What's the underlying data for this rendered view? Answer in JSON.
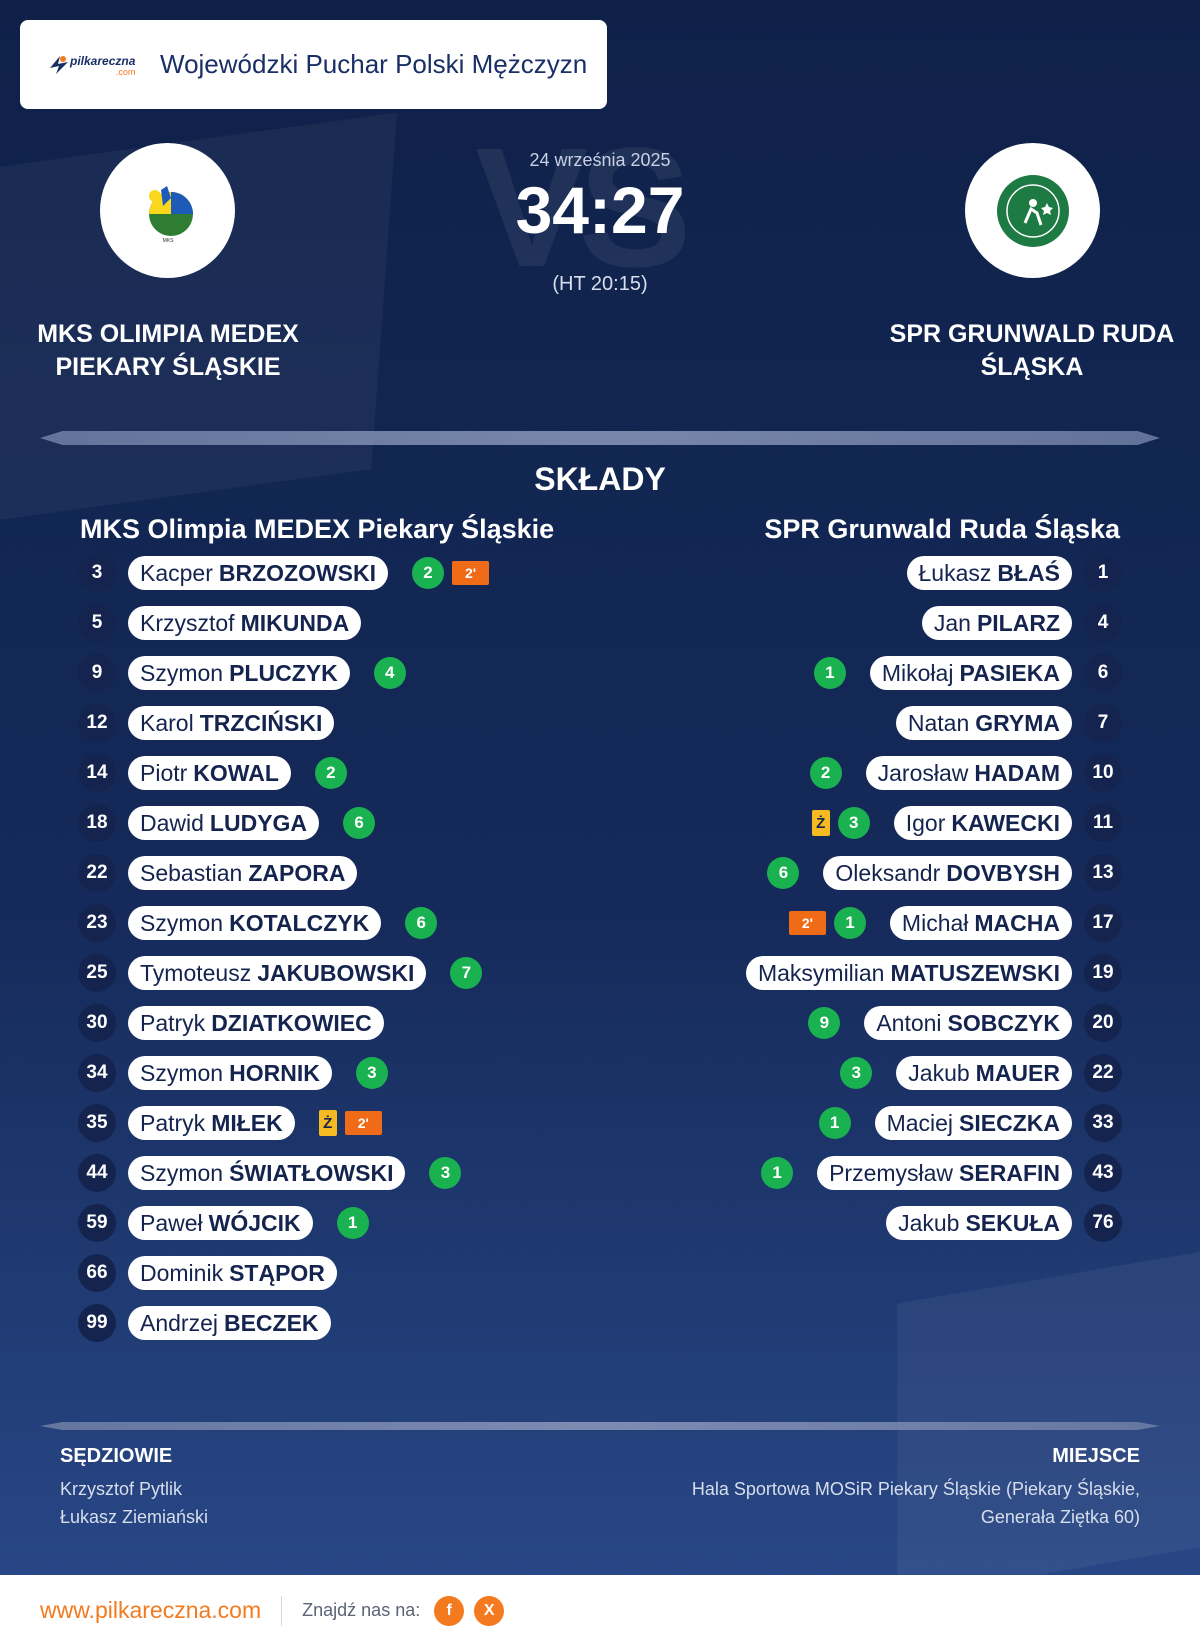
{
  "header": {
    "brand_main": "pilkareczna",
    "brand_sub": ".com",
    "title": "Wojewódzki Puchar Polski Mężczyzn"
  },
  "match": {
    "date": "24 września 2025",
    "score": "34:27",
    "halftime": "(HT 20:15)",
    "home_team": "MKS Olimpia MEDEX Piekary Śląskie",
    "away_team": "SPR Grunwald Ruda Śląska"
  },
  "squads_title": "SKŁADY",
  "home_squad": [
    {
      "number": "3",
      "first": "Kacper",
      "last": "BRZOZOWSKI",
      "goals": "2",
      "yellow": false,
      "suspension": "2'"
    },
    {
      "number": "5",
      "first": "Krzysztof",
      "last": "MIKUNDA",
      "goals": null,
      "yellow": false,
      "suspension": null
    },
    {
      "number": "9",
      "first": "Szymon",
      "last": "PLUCZYK",
      "goals": "4",
      "yellow": false,
      "suspension": null
    },
    {
      "number": "12",
      "first": "Karol",
      "last": "TRZCIŃSKI",
      "goals": null,
      "yellow": false,
      "suspension": null
    },
    {
      "number": "14",
      "first": "Piotr",
      "last": "KOWAL",
      "goals": "2",
      "yellow": false,
      "suspension": null
    },
    {
      "number": "18",
      "first": "Dawid",
      "last": "LUDYGA",
      "goals": "6",
      "yellow": false,
      "suspension": null
    },
    {
      "number": "22",
      "first": "Sebastian",
      "last": "ZAPORA",
      "goals": null,
      "yellow": false,
      "suspension": null
    },
    {
      "number": "23",
      "first": "Szymon",
      "last": "KOTALCZYK",
      "goals": "6",
      "yellow": false,
      "suspension": null
    },
    {
      "number": "25",
      "first": "Tymoteusz",
      "last": "JAKUBOWSKI",
      "goals": "7",
      "yellow": false,
      "suspension": null
    },
    {
      "number": "30",
      "first": "Patryk",
      "last": "DZIATKOWIEC",
      "goals": null,
      "yellow": false,
      "suspension": null
    },
    {
      "number": "34",
      "first": "Szymon",
      "last": "HORNIK",
      "goals": "3",
      "yellow": false,
      "suspension": null
    },
    {
      "number": "35",
      "first": "Patryk",
      "last": "MIŁEK",
      "goals": null,
      "yellow": true,
      "suspension": "2'"
    },
    {
      "number": "44",
      "first": "Szymon",
      "last": "ŚWIATŁOWSKI",
      "goals": "3",
      "yellow": false,
      "suspension": null
    },
    {
      "number": "59",
      "first": "Paweł",
      "last": "WÓJCIK",
      "goals": "1",
      "yellow": false,
      "suspension": null
    },
    {
      "number": "66",
      "first": "Dominik",
      "last": "STĄPOR",
      "goals": null,
      "yellow": false,
      "suspension": null
    },
    {
      "number": "99",
      "first": "Andrzej",
      "last": "BECZEK",
      "goals": null,
      "yellow": false,
      "suspension": null
    }
  ],
  "away_squad": [
    {
      "number": "1",
      "first": "Łukasz",
      "last": "BŁAŚ",
      "goals": null,
      "yellow": false,
      "suspension": null
    },
    {
      "number": "4",
      "first": "Jan",
      "last": "PILARZ",
      "goals": null,
      "yellow": false,
      "suspension": null
    },
    {
      "number": "6",
      "first": "Mikołaj",
      "last": "PASIEKA",
      "goals": "1",
      "yellow": false,
      "suspension": null
    },
    {
      "number": "7",
      "first": "Natan",
      "last": "GRYMA",
      "goals": null,
      "yellow": false,
      "suspension": null
    },
    {
      "number": "10",
      "first": "Jarosław",
      "last": "HADAM",
      "goals": "2",
      "yellow": false,
      "suspension": null
    },
    {
      "number": "11",
      "first": "Igor",
      "last": "KAWECKI",
      "goals": "3",
      "yellow": true,
      "suspension": null
    },
    {
      "number": "13",
      "first": "Oleksandr",
      "last": "DOVBYSH",
      "goals": "6",
      "yellow": false,
      "suspension": null
    },
    {
      "number": "17",
      "first": "Michał",
      "last": "MACHA",
      "goals": "1",
      "yellow": false,
      "suspension": "2'"
    },
    {
      "number": "19",
      "first": "Maksymilian",
      "last": "MATUSZEWSKI",
      "goals": null,
      "yellow": false,
      "suspension": null
    },
    {
      "number": "20",
      "first": "Antoni",
      "last": "SOBCZYK",
      "goals": "9",
      "yellow": false,
      "suspension": null
    },
    {
      "number": "22",
      "first": "Jakub",
      "last": "MAUER",
      "goals": "3",
      "yellow": false,
      "suspension": null
    },
    {
      "number": "33",
      "first": "Maciej",
      "last": "SIECZKA",
      "goals": "1",
      "yellow": false,
      "suspension": null
    },
    {
      "number": "43",
      "first": "Przemysław",
      "last": "SERAFIN",
      "goals": "1",
      "yellow": false,
      "suspension": null
    },
    {
      "number": "76",
      "first": "Jakub",
      "last": "SEKUŁA",
      "goals": null,
      "yellow": false,
      "suspension": null
    }
  ],
  "yellow_card_label": "Ż",
  "referees": {
    "label": "SĘDZIOWIE",
    "names": [
      "Krzysztof Pytlik",
      "Łukasz Ziemiański"
    ]
  },
  "venue": {
    "label": "MIEJSCE",
    "text": "Hala Sportowa MOSiR Piekary Śląskie (Piekary Śląskie, Generała Ziętka 60)"
  },
  "footer": {
    "url": "www.pilkareczna.com",
    "find_us": "Znajdź nas na:",
    "social": [
      "f",
      "X"
    ]
  },
  "colors": {
    "background": "#152a5a",
    "accent": "#f47a1f",
    "goals": "#1ab150",
    "yellow_card": "#f5b921",
    "suspension": "#f06b17"
  }
}
